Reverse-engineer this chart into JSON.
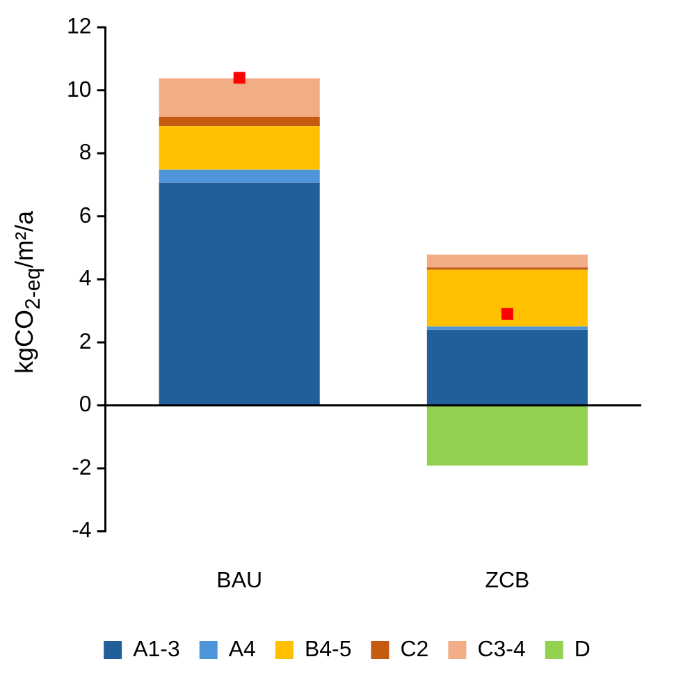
{
  "chart_data": {
    "type": "bar",
    "stacked": true,
    "ylabel": "kgCO$_{2-eq}$/m²/a",
    "categories": [
      "BAU",
      "ZCB"
    ],
    "series": [
      {
        "name": "A1-3",
        "color": "#215f9a",
        "values": [
          7.07,
          2.4
        ]
      },
      {
        "name": "A4",
        "color": "#4e95d9",
        "values": [
          0.41,
          0.1
        ]
      },
      {
        "name": "B4-5",
        "color": "#ffc000",
        "values": [
          1.38,
          1.8
        ]
      },
      {
        "name": "C2",
        "color": "#c55a11",
        "values": [
          0.3,
          0.08
        ]
      },
      {
        "name": "C3-4",
        "color": "#f2ac86",
        "values": [
          1.22,
          0.41
        ]
      },
      {
        "name": "D",
        "color": "#92d050",
        "values": [
          null,
          -1.91
        ]
      },
      {
        "type": "scatter",
        "color": "#ff0000",
        "marker": "square",
        "x": [
          "BAU",
          "ZCB"
        ],
        "values": [
          10.4,
          2.9
        ]
      }
    ],
    "ylim": [
      -4,
      12
    ],
    "yticks": [
      -4,
      -2,
      0,
      2,
      4,
      6,
      8,
      10,
      12
    ],
    "grid": false,
    "ref_lines": [
      {
        "axis": "y",
        "value": 0,
        "color": "#000000"
      }
    ],
    "legend": "bottom"
  }
}
